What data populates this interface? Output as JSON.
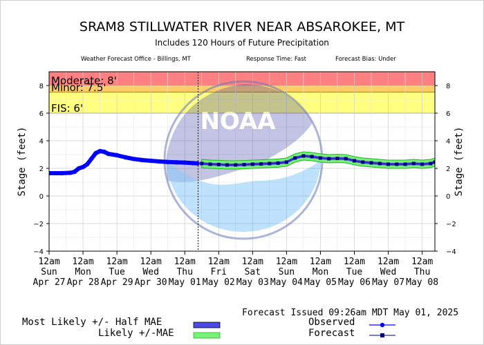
{
  "header": {
    "title": "SRAM8 STILLWATER RIVER NEAR ABSAROKEE, MT",
    "subtitle": "Includes 120 Hours of Future Precipitation",
    "office": "Weather Forecast Office - Billings, MT",
    "response_time": "Response Time: Fast",
    "forecast_bias": "Forecast Bias:  Under"
  },
  "issued": "Forecast Issued 09:26am MDT May 01, 2025",
  "watermark": "NOAA",
  "legend": {
    "most_likely": "Most Likely +/- Half MAE",
    "likely": "Likely +/-MAE",
    "observed": "Observed",
    "forecast": "Forecast"
  },
  "colors": {
    "observed": "#0000ff",
    "forecast_line": "#2a2ab4",
    "forecast_marker": "#000080",
    "half_mae_band": "#4a4ae6",
    "mae_band": "#7af07a",
    "mae_edge": "#17b817",
    "moderate": "#ff8080",
    "minor": "#ffcc66",
    "fis": "#ffff80",
    "now_line": "#000000"
  },
  "chart_data": {
    "type": "line",
    "ylabel": "Stage (feet)",
    "ylabel_right": "Stage (feet)",
    "ylim": [
      -4,
      9
    ],
    "yticks": [
      -4,
      -2,
      0,
      2,
      4,
      6,
      8
    ],
    "x_range": [
      "2025-04-27T00:00",
      "2025-05-08T09:00"
    ],
    "grid": true,
    "now": "2025-05-01T09:26",
    "x_tick_labels": [
      {
        "t": "2025-04-27T00:00",
        "lines": [
          "12am",
          "Sun",
          "Apr 27"
        ]
      },
      {
        "t": "2025-04-28T00:00",
        "lines": [
          "12am",
          "Mon",
          "Apr 28"
        ]
      },
      {
        "t": "2025-04-29T00:00",
        "lines": [
          "12am",
          "Tue",
          "Apr 29"
        ]
      },
      {
        "t": "2025-04-30T00:00",
        "lines": [
          "12am",
          "Wed",
          "Apr 30"
        ]
      },
      {
        "t": "2025-05-01T00:00",
        "lines": [
          "12am",
          "Thu",
          "May 01"
        ]
      },
      {
        "t": "2025-05-02T00:00",
        "lines": [
          "12am",
          "Fri",
          "May 02"
        ]
      },
      {
        "t": "2025-05-03T00:00",
        "lines": [
          "12am",
          "Sat",
          "May 03"
        ]
      },
      {
        "t": "2025-05-04T00:00",
        "lines": [
          "12am",
          "Sun",
          "May 04"
        ]
      },
      {
        "t": "2025-05-05T00:00",
        "lines": [
          "12am",
          "Mon",
          "May 05"
        ]
      },
      {
        "t": "2025-05-06T00:00",
        "lines": [
          "12am",
          "Tue",
          "May 06"
        ]
      },
      {
        "t": "2025-05-07T00:00",
        "lines": [
          "12am",
          "Wed",
          "May 07"
        ]
      },
      {
        "t": "2025-05-08T00:00",
        "lines": [
          "12am",
          "Thu",
          "May 08"
        ]
      }
    ],
    "flood_categories": [
      {
        "name": "Moderate",
        "label": "Moderate: 8'",
        "from": 8,
        "to": 9
      },
      {
        "name": "Minor",
        "label": "Minor: 7.5'",
        "from": 7.5,
        "to": 8
      },
      {
        "name": "FIS",
        "label": "FIS: 6'",
        "from": 6,
        "to": 7.5
      }
    ],
    "series": [
      {
        "name": "Observed",
        "points": [
          [
            "2025-04-27T00:00",
            1.65
          ],
          [
            "2025-04-27T09:00",
            1.65
          ],
          [
            "2025-04-27T15:00",
            1.68
          ],
          [
            "2025-04-27T18:00",
            1.75
          ],
          [
            "2025-04-27T21:00",
            2.0
          ],
          [
            "2025-04-28T00:00",
            2.1
          ],
          [
            "2025-04-28T03:00",
            2.3
          ],
          [
            "2025-04-28T06:00",
            2.7
          ],
          [
            "2025-04-28T09:00",
            3.1
          ],
          [
            "2025-04-28T12:00",
            3.25
          ],
          [
            "2025-04-28T15:00",
            3.2
          ],
          [
            "2025-04-28T18:00",
            3.05
          ],
          [
            "2025-04-29T00:00",
            2.95
          ],
          [
            "2025-04-29T06:00",
            2.8
          ],
          [
            "2025-04-29T12:00",
            2.68
          ],
          [
            "2025-04-29T18:00",
            2.6
          ],
          [
            "2025-04-30T00:00",
            2.55
          ],
          [
            "2025-04-30T06:00",
            2.5
          ],
          [
            "2025-04-30T12:00",
            2.46
          ],
          [
            "2025-04-30T18:00",
            2.44
          ],
          [
            "2025-05-01T00:00",
            2.42
          ],
          [
            "2025-05-01T06:00",
            2.38
          ],
          [
            "2025-05-01T09:00",
            2.36
          ]
        ]
      },
      {
        "name": "Forecast",
        "points": [
          [
            "2025-05-01T12:00",
            2.35
          ],
          [
            "2025-05-01T18:00",
            2.3
          ],
          [
            "2025-05-02T00:00",
            2.28
          ],
          [
            "2025-05-02T06:00",
            2.25
          ],
          [
            "2025-05-02T12:00",
            2.25
          ],
          [
            "2025-05-02T18:00",
            2.27
          ],
          [
            "2025-05-03T00:00",
            2.3
          ],
          [
            "2025-05-03T06:00",
            2.32
          ],
          [
            "2025-05-03T12:00",
            2.35
          ],
          [
            "2025-05-03T18:00",
            2.38
          ],
          [
            "2025-05-04T00:00",
            2.45
          ],
          [
            "2025-05-04T06:00",
            2.75
          ],
          [
            "2025-05-04T12:00",
            2.9
          ],
          [
            "2025-05-04T18:00",
            2.85
          ],
          [
            "2025-05-05T00:00",
            2.75
          ],
          [
            "2025-05-05T06:00",
            2.7
          ],
          [
            "2025-05-05T12:00",
            2.72
          ],
          [
            "2025-05-05T18:00",
            2.7
          ],
          [
            "2025-05-06T00:00",
            2.55
          ],
          [
            "2025-05-06T06:00",
            2.45
          ],
          [
            "2025-05-06T12:00",
            2.4
          ],
          [
            "2025-05-06T18:00",
            2.35
          ],
          [
            "2025-05-07T00:00",
            2.3
          ],
          [
            "2025-05-07T06:00",
            2.3
          ],
          [
            "2025-05-07T12:00",
            2.3
          ],
          [
            "2025-05-07T18:00",
            2.35
          ],
          [
            "2025-05-08T00:00",
            2.3
          ],
          [
            "2025-05-08T06:00",
            2.35
          ],
          [
            "2025-05-08T09:00",
            2.45
          ]
        ],
        "half_mae": 0.1,
        "mae": 0.3
      }
    ]
  }
}
